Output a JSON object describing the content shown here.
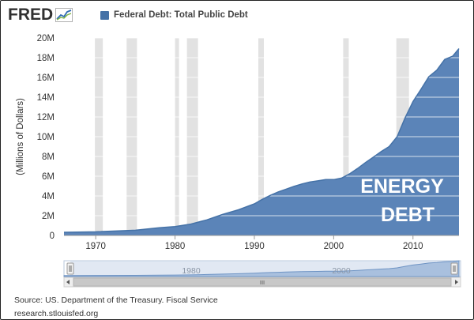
{
  "brand": {
    "name": "FRED",
    "logo_icon": "line-graph-icon"
  },
  "legend": {
    "label": "Federal Debt: Total Public Debt",
    "color": "#4572a7"
  },
  "overlay_text": {
    "line1": "ENERGY",
    "line2": "DEBT"
  },
  "navigator": {
    "labels": [
      "1980",
      "2000"
    ],
    "scroll_label": "III"
  },
  "footer": {
    "source": "Source: US. Department of the Treasury. Fiscal Service",
    "url": "research.stlouisfed.org"
  },
  "colors": {
    "area": "#5b84b8",
    "area_line": "#4572a7",
    "recession": "#e2e2e2",
    "grid": "#ffffff"
  },
  "chart_data": {
    "type": "area",
    "title": "",
    "xlabel": "",
    "ylabel": "(Millions of Dollars)",
    "xlim": [
      1966,
      2015.8
    ],
    "ylim": [
      0,
      20000000
    ],
    "y_ticks": [
      0,
      2000000,
      4000000,
      6000000,
      8000000,
      10000000,
      12000000,
      14000000,
      16000000,
      18000000,
      20000000
    ],
    "y_tick_labels": [
      "0",
      "2M",
      "4M",
      "6M",
      "8M",
      "10M",
      "12M",
      "14M",
      "16M",
      "18M",
      "20M"
    ],
    "x_ticks": [
      1970,
      1980,
      1990,
      2000,
      2010
    ],
    "x_tick_labels": [
      "1970",
      "1980",
      "1990",
      "2000",
      "2010"
    ],
    "recessions": [
      [
        1969.9,
        1970.9
      ],
      [
        1973.9,
        1975.2
      ],
      [
        1980.0,
        1980.5
      ],
      [
        1981.5,
        1982.9
      ],
      [
        1990.5,
        1991.2
      ],
      [
        2001.2,
        2001.9
      ],
      [
        2007.9,
        2009.5
      ]
    ],
    "grid": true,
    "series": [
      {
        "name": "Federal Debt: Total Public Debt",
        "x": [
          1966,
          1970,
          1975,
          1978,
          1980,
          1982,
          1984,
          1986,
          1988,
          1990,
          1991,
          1992,
          1993,
          1994,
          1995,
          1996,
          1997,
          1998,
          1999,
          2000,
          2001,
          2002,
          2003,
          2004,
          2005,
          2006,
          2007,
          2008,
          2009,
          2010,
          2011,
          2012,
          2013,
          2014,
          2015,
          2015.8
        ],
        "values": [
          320000,
          370000,
          530000,
          780000,
          900000,
          1150000,
          1580000,
          2130000,
          2600000,
          3200000,
          3660000,
          4060000,
          4410000,
          4690000,
          4970000,
          5220000,
          5410000,
          5530000,
          5660000,
          5660000,
          5810000,
          6230000,
          6780000,
          7380000,
          7930000,
          8500000,
          9000000,
          10000000,
          11900000,
          13560000,
          14790000,
          16070000,
          16740000,
          17820000,
          18150000,
          18920000
        ]
      }
    ]
  }
}
